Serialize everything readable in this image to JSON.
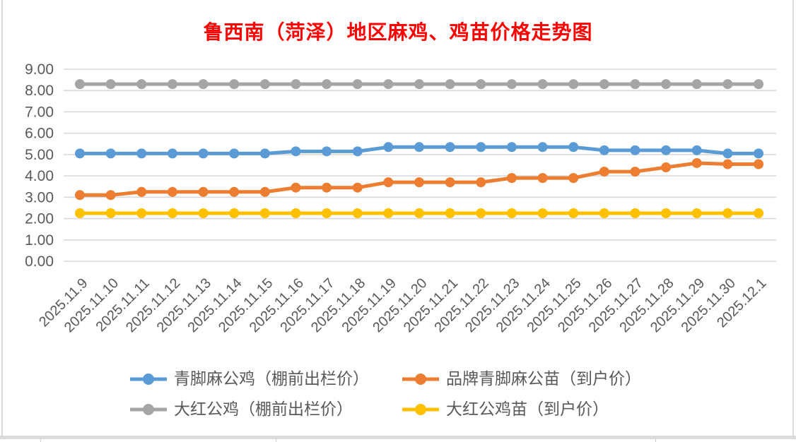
{
  "chart_data": {
    "type": "line",
    "title": "鲁西南（菏泽）地区麻鸡、鸡苗价格走势图",
    "title_color": "#FF0000",
    "xlabel": "",
    "ylabel": "",
    "ylim": [
      0,
      9
    ],
    "ytick_step": 1,
    "grid": true,
    "legend_position": "bottom",
    "axis_text_color": "#595959",
    "gridline_color": "#D9D9D9",
    "categories": [
      "2025.11.9",
      "2025.11.10",
      "2025.11.11",
      "2025.11.12",
      "2025.11.13",
      "2025.11.14",
      "2025.11.15",
      "2025.11.16",
      "2025.11.17",
      "2025.11.18",
      "2025.11.19",
      "2025.11.20",
      "2025.11.21",
      "2025.11.22",
      "2025.11.23",
      "2025.11.24",
      "2025.11.25",
      "2025.11.26",
      "2025.11.27",
      "2025.11.28",
      "2025.11.29",
      "2025.11.30",
      "2025.12.1"
    ],
    "series": [
      {
        "name": "青脚麻公鸡（棚前出栏价）",
        "color": "#5B9BD5",
        "values": [
          5.05,
          5.05,
          5.05,
          5.05,
          5.05,
          5.05,
          5.05,
          5.15,
          5.15,
          5.15,
          5.35,
          5.35,
          5.35,
          5.35,
          5.35,
          5.35,
          5.35,
          5.2,
          5.2,
          5.2,
          5.2,
          5.05,
          5.05
        ]
      },
      {
        "name": "品牌青脚麻公苗（到户价）",
        "color": "#ED7D31",
        "values": [
          3.1,
          3.1,
          3.25,
          3.25,
          3.25,
          3.25,
          3.25,
          3.45,
          3.45,
          3.45,
          3.7,
          3.7,
          3.7,
          3.7,
          3.9,
          3.9,
          3.9,
          4.2,
          4.2,
          4.4,
          4.6,
          4.55,
          4.55
        ]
      },
      {
        "name": "大红公鸡（棚前出栏价）",
        "color": "#A5A5A5",
        "values": [
          8.3,
          8.3,
          8.3,
          8.3,
          8.3,
          8.3,
          8.3,
          8.3,
          8.3,
          8.3,
          8.3,
          8.3,
          8.3,
          8.3,
          8.3,
          8.3,
          8.3,
          8.3,
          8.3,
          8.3,
          8.3,
          8.3,
          8.3
        ]
      },
      {
        "name": "大红公鸡苗（到户价）",
        "color": "#FFC000",
        "values": [
          2.25,
          2.25,
          2.25,
          2.25,
          2.25,
          2.25,
          2.25,
          2.25,
          2.25,
          2.25,
          2.25,
          2.25,
          2.25,
          2.25,
          2.25,
          2.25,
          2.25,
          2.25,
          2.25,
          2.25,
          2.25,
          2.25,
          2.25
        ]
      }
    ]
  }
}
